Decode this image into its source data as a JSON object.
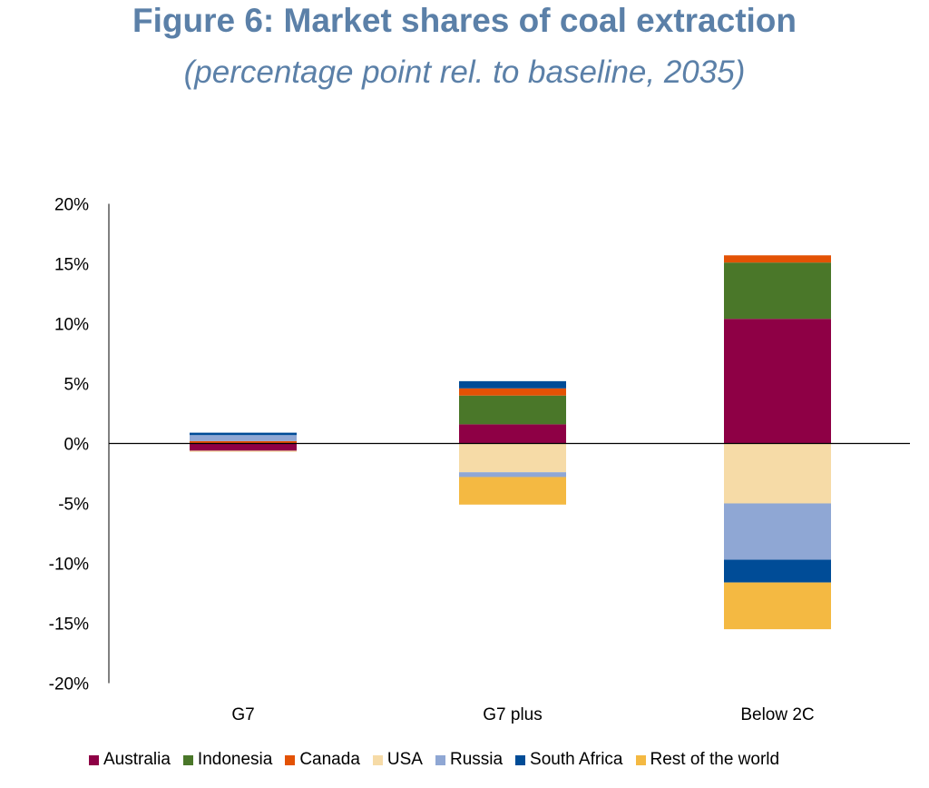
{
  "chart_data": {
    "type": "bar",
    "stacked": true,
    "title": "Figure 6: Market shares of coal extraction",
    "subtitle": "(percentage point rel. to baseline, 2035)",
    "xlabel": "",
    "ylabel": "",
    "ylim": [
      -20,
      20
    ],
    "yticks": [
      "20%",
      "15%",
      "10%",
      "5%",
      "0%",
      "-5%",
      "-10%",
      "-15%",
      "-20%"
    ],
    "ytick_values": [
      20,
      15,
      10,
      5,
      0,
      -5,
      -10,
      -15,
      -20
    ],
    "grid": false,
    "legend_position": "bottom",
    "categories": [
      "G7",
      "G7 plus",
      "Below 2C"
    ],
    "series": [
      {
        "name": "Australia",
        "color": "#8e0045",
        "values": [
          -0.6,
          1.6,
          10.4
        ]
      },
      {
        "name": "Indonesia",
        "color": "#4a7729",
        "values": [
          0,
          2.4,
          4.7
        ]
      },
      {
        "name": "Canada",
        "color": "#e35205",
        "values": [
          0.2,
          0.6,
          0.6
        ]
      },
      {
        "name": "USA",
        "color": "#f6dba7",
        "values": [
          -0.1,
          -2.4,
          -5.0
        ]
      },
      {
        "name": "Russia",
        "color": "#8fa7d4",
        "values": [
          0.5,
          -0.4,
          -4.7
        ]
      },
      {
        "name": "South Africa",
        "color": "#004c97",
        "values": [
          0.2,
          0.6,
          -1.9
        ]
      },
      {
        "name": "Rest of the world",
        "color": "#f4b942",
        "values": [
          0,
          -2.3,
          -3.9
        ]
      }
    ]
  }
}
